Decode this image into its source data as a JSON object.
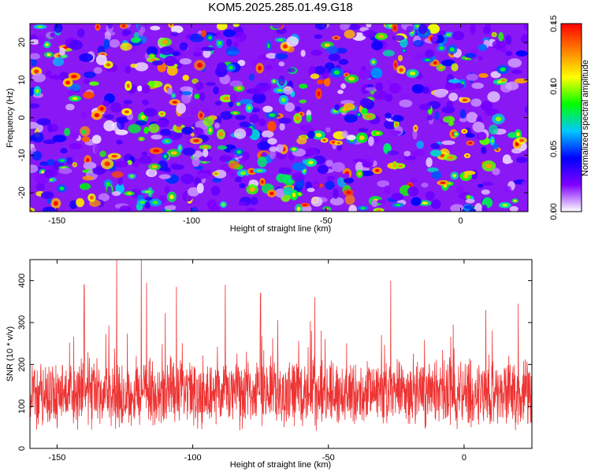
{
  "title": "KOM5.2025.285.01.49.G18",
  "chart_data": [
    {
      "type": "heatmap",
      "xlabel": "Height of straight line (km)",
      "ylabel": "Frequency (Hz)",
      "xlim": [
        -160,
        25
      ],
      "ylim": [
        -25,
        25
      ],
      "x_ticks": [
        {
          "value": -150,
          "label": "-150"
        },
        {
          "value": -100,
          "label": "-100"
        },
        {
          "value": -50,
          "label": "-50"
        },
        {
          "value": 0,
          "label": "0"
        }
      ],
      "y_ticks": [
        {
          "value": 20,
          "label": "20"
        },
        {
          "value": 10,
          "label": "10"
        },
        {
          "value": 0,
          "label": "0"
        },
        {
          "value": -10,
          "label": "-10"
        },
        {
          "value": -20,
          "label": "-20"
        }
      ],
      "colorbar": {
        "label": "Normalized spectral amplitude",
        "range": [
          0,
          0.15
        ],
        "ticks": [
          {
            "value": 0.0,
            "label": "0.00"
          },
          {
            "value": 0.05,
            "label": "0.05"
          },
          {
            "value": 0.1,
            "label": "0.10"
          },
          {
            "value": 0.15,
            "label": "0.15"
          }
        ],
        "colormap": [
          "#ffffff",
          "#8000ff",
          "#0000ff",
          "#00c8ff",
          "#00ff00",
          "#ffff00",
          "#ff8000",
          "#ff0000"
        ]
      },
      "field": {
        "background_level": 0.025,
        "blob_count": 900,
        "peak_range": [
          0.02,
          0.14
        ]
      }
    },
    {
      "type": "line",
      "xlabel": "Height of straight line (km)",
      "ylabel": "SNR (10 * v/v)",
      "xlim": [
        -160,
        25
      ],
      "ylim": [
        0,
        450
      ],
      "x_ticks": [
        {
          "value": -150,
          "label": "-150"
        },
        {
          "value": -100,
          "label": "-100"
        },
        {
          "value": -50,
          "label": "-50"
        },
        {
          "value": 0,
          "label": "0"
        }
      ],
      "y_ticks": [
        {
          "value": 0,
          "label": "0"
        },
        {
          "value": 100,
          "label": "100"
        },
        {
          "value": 200,
          "label": "200"
        },
        {
          "value": 300,
          "label": "300"
        },
        {
          "value": 400,
          "label": "400"
        }
      ],
      "series": [
        {
          "name": "SNR",
          "color": "#ee3333",
          "n_points": 1800,
          "baseline": 130,
          "spread": 75,
          "peaks": [
            {
              "x": -128,
              "y": 450
            },
            {
              "x": -119,
              "y": 450
            },
            {
              "x": -117,
              "y": 395
            },
            {
              "x": -140,
              "y": 390
            },
            {
              "x": -106,
              "y": 385
            },
            {
              "x": -88,
              "y": 390
            },
            {
              "x": -75,
              "y": 370
            },
            {
              "x": -55,
              "y": 360
            },
            {
              "x": -27,
              "y": 400
            },
            {
              "x": -4,
              "y": 295
            },
            {
              "x": 8,
              "y": 330
            },
            {
              "x": 20,
              "y": 345
            }
          ]
        }
      ]
    }
  ]
}
